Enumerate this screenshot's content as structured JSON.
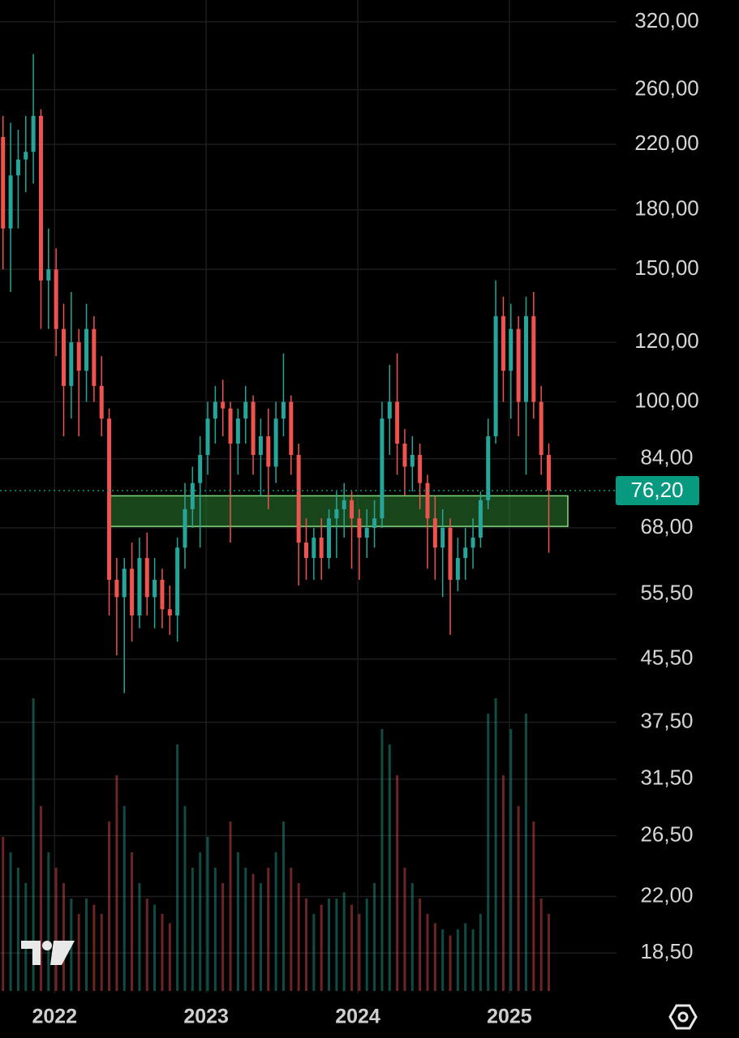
{
  "chart_data": {
    "type": "candlestick",
    "log_scale": true,
    "grid": true,
    "up_color": "#26a69a",
    "down_color": "#ef5350",
    "xlim": [
      2021.64,
      2025.68
    ],
    "xticks": [
      2022,
      2023,
      2024,
      2025
    ],
    "ylim": [
      16.35,
      342.2
    ],
    "yticks": [
      {
        "value": 320,
        "label": "320,00"
      },
      {
        "value": 260,
        "label": "260,00"
      },
      {
        "value": 220,
        "label": "220,00"
      },
      {
        "value": 180,
        "label": "180,00"
      },
      {
        "value": 150,
        "label": "150,00"
      },
      {
        "value": 120,
        "label": "120,00"
      },
      {
        "value": 100,
        "label": "100,00"
      },
      {
        "value": 84,
        "label": "84,00"
      },
      {
        "value": 68,
        "label": "68,00"
      },
      {
        "value": 55.5,
        "label": "55,50"
      },
      {
        "value": 45.5,
        "label": "45,50"
      },
      {
        "value": 37.5,
        "label": "37,50"
      },
      {
        "value": 31.5,
        "label": "31,50"
      },
      {
        "value": 26.5,
        "label": "26,50"
      },
      {
        "value": 22,
        "label": "22,00"
      },
      {
        "value": 18.5,
        "label": "18,50"
      }
    ],
    "x": [
      2021.66,
      2021.71,
      2021.76,
      2021.81,
      2021.86,
      2021.91,
      2021.96,
      2022.01,
      2022.06,
      2022.11,
      2022.16,
      2022.21,
      2022.26,
      2022.31,
      2022.36,
      2022.41,
      2022.46,
      2022.51,
      2022.56,
      2022.61,
      2022.66,
      2022.71,
      2022.76,
      2022.81,
      2022.86,
      2022.91,
      2022.96,
      2023.01,
      2023.06,
      2023.11,
      2023.16,
      2023.21,
      2023.26,
      2023.31,
      2023.36,
      2023.41,
      2023.46,
      2023.51,
      2023.56,
      2023.61,
      2023.66,
      2023.71,
      2023.76,
      2023.81,
      2023.86,
      2023.91,
      2023.96,
      2024.01,
      2024.06,
      2024.11,
      2024.16,
      2024.21,
      2024.26,
      2024.31,
      2024.36,
      2024.41,
      2024.46,
      2024.51,
      2024.56,
      2024.61,
      2024.66,
      2024.71,
      2024.76,
      2024.81,
      2024.86,
      2024.91,
      2024.96,
      2025.01,
      2025.06,
      2025.11,
      2025.16,
      2025.21,
      2025.26
    ],
    "open": [
      225,
      170,
      200,
      210,
      215,
      240,
      145,
      150,
      125,
      105,
      120,
      110,
      125,
      105,
      95,
      58,
      55,
      60,
      52,
      62,
      55,
      58,
      53,
      52,
      64,
      72,
      78,
      85,
      95,
      100,
      98,
      88,
      95,
      100,
      85,
      90,
      82,
      95,
      100,
      85,
      65,
      62,
      66,
      62,
      70,
      72,
      74,
      70,
      66,
      68,
      70,
      95,
      100,
      88,
      82,
      85,
      78,
      70,
      64,
      68,
      58,
      62,
      64,
      66,
      74,
      90,
      130,
      110,
      125,
      100,
      130,
      100,
      85
    ],
    "high": [
      240,
      235,
      230,
      240,
      290,
      245,
      170,
      160,
      135,
      140,
      125,
      135,
      130,
      115,
      98,
      62,
      62,
      65,
      66,
      67,
      62,
      60,
      57,
      66,
      78,
      82,
      90,
      100,
      105,
      107,
      100,
      98,
      105,
      102,
      95,
      98,
      100,
      116,
      102,
      88,
      70,
      68,
      70,
      72,
      76,
      78,
      76,
      72,
      72,
      74,
      100,
      112,
      116,
      92,
      90,
      88,
      80,
      75,
      72,
      70,
      66,
      68,
      70,
      76,
      95,
      145,
      138,
      135,
      130,
      138,
      140,
      105,
      88
    ],
    "low": [
      150,
      140,
      170,
      190,
      195,
      125,
      125,
      115,
      90,
      95,
      90,
      100,
      100,
      90,
      52,
      46,
      41,
      48,
      50,
      52,
      50,
      50,
      49,
      48,
      60,
      68,
      64,
      80,
      88,
      90,
      65,
      80,
      88,
      80,
      75,
      72,
      78,
      90,
      80,
      57,
      58,
      58,
      58,
      60,
      62,
      66,
      60,
      58,
      62,
      64,
      68,
      85,
      80,
      75,
      76,
      72,
      60,
      58,
      55,
      49,
      56,
      58,
      60,
      64,
      72,
      88,
      100,
      95,
      90,
      80,
      95,
      80,
      63
    ],
    "close": [
      170,
      200,
      210,
      215,
      240,
      145,
      150,
      125,
      105,
      120,
      110,
      125,
      105,
      95,
      58,
      55,
      60,
      52,
      62,
      55,
      58,
      53,
      52,
      64,
      72,
      78,
      85,
      95,
      100,
      98,
      88,
      95,
      100,
      85,
      90,
      82,
      95,
      100,
      85,
      65,
      62,
      66,
      62,
      70,
      72,
      74,
      70,
      66,
      68,
      70,
      95,
      100,
      88,
      82,
      85,
      78,
      70,
      64,
      68,
      58,
      62,
      64,
      66,
      74,
      90,
      130,
      110,
      125,
      100,
      130,
      100,
      85,
      76.2
    ],
    "volume_lim": [
      0,
      100
    ],
    "volume": [
      50,
      45,
      40,
      35,
      95,
      60,
      45,
      40,
      35,
      30,
      25,
      30,
      28,
      25,
      55,
      70,
      60,
      45,
      35,
      30,
      28,
      25,
      22,
      80,
      60,
      40,
      45,
      50,
      40,
      35,
      55,
      45,
      40,
      38,
      35,
      40,
      45,
      55,
      40,
      35,
      30,
      25,
      28,
      30,
      30,
      32,
      28,
      25,
      30,
      35,
      85,
      80,
      70,
      40,
      35,
      30,
      25,
      22,
      20,
      18,
      20,
      22,
      20,
      25,
      90,
      95,
      70,
      85,
      60,
      90,
      55,
      30,
      25
    ],
    "zone": [
      68.3,
      75
    ],
    "zone_color": "#2e7d32",
    "last_price": {
      "value": 76.2,
      "label": "76,20"
    },
    "last_color": "#089981"
  }
}
